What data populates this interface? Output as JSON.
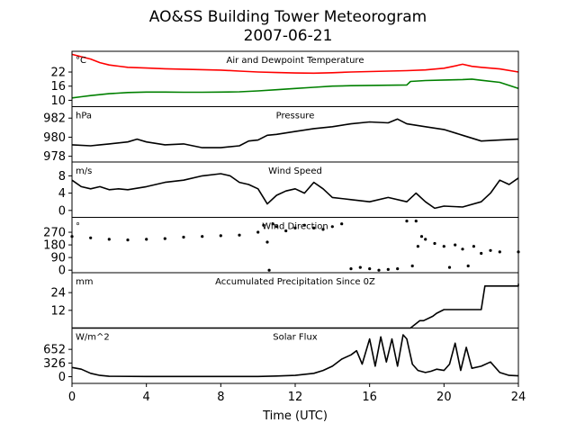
{
  "figure": {
    "title_line1": "AO&SS Building Tower Meteorogram",
    "title_line2": "2007-06-21",
    "xlabel": "Time (UTC)"
  },
  "chart_data": [
    {
      "type": "line",
      "title": "Air and Dewpoint Temperature",
      "unit": "°C",
      "ylim": [
        7.3,
        30.8
      ],
      "yticks": [
        "10",
        "16",
        "22"
      ],
      "ytick_values": [
        10,
        16,
        22
      ],
      "xlim": [
        0,
        24
      ],
      "series": [
        {
          "color": "#ff0000",
          "x": [
            0,
            0.5,
            1,
            1.5,
            2,
            2.5,
            3,
            4,
            5,
            6,
            7,
            8,
            9,
            10,
            11,
            12,
            13,
            14,
            15,
            16,
            17,
            18,
            19,
            20,
            20.5,
            21,
            21.5,
            22,
            23,
            24
          ],
          "y": [
            29.5,
            28.5,
            27.5,
            26,
            25,
            24.5,
            24,
            23.7,
            23.4,
            23.2,
            23,
            22.8,
            22.4,
            22,
            21.8,
            21.6,
            21.5,
            21.7,
            22,
            22.2,
            22.4,
            22.6,
            22.9,
            23.6,
            24.4,
            25.3,
            24.4,
            24,
            23.3,
            22
          ]
        },
        {
          "color": "#008000",
          "x": [
            0,
            0.5,
            1,
            2,
            3,
            4,
            5,
            6,
            7,
            8,
            9,
            10,
            11,
            12,
            13,
            14,
            15,
            16,
            17,
            18,
            18.2,
            19,
            20,
            21,
            21.5,
            22,
            23,
            24
          ],
          "y": [
            11,
            11.5,
            12,
            12.8,
            13.3,
            13.5,
            13.5,
            13.4,
            13.4,
            13.5,
            13.6,
            14,
            14.5,
            15,
            15.5,
            16,
            16.2,
            16.3,
            16.4,
            16.5,
            18,
            18.4,
            18.6,
            18.8,
            19,
            18.5,
            17.6,
            15
          ]
        }
      ]
    },
    {
      "type": "line",
      "title": "Pressure",
      "unit": "hPa",
      "ylim": [
        977.4,
        983.2
      ],
      "yticks": [
        "978",
        "980",
        "982"
      ],
      "ytick_values": [
        978,
        980,
        982
      ],
      "xlim": [
        0,
        24
      ],
      "series": [
        {
          "color": "#000000",
          "x": [
            0,
            1,
            1.5,
            2,
            3,
            3.5,
            4,
            5,
            6,
            7,
            8,
            9,
            9.5,
            10,
            10.5,
            11,
            12,
            13,
            14,
            15,
            16,
            17,
            17.5,
            18,
            19,
            20,
            21,
            22,
            23,
            24
          ],
          "y": [
            979.2,
            979.1,
            979.2,
            979.3,
            979.5,
            979.8,
            979.5,
            979.2,
            979.3,
            978.9,
            978.9,
            979.1,
            979.6,
            979.7,
            980.2,
            980.3,
            980.6,
            980.9,
            981.1,
            981.4,
            981.6,
            981.5,
            981.9,
            981.4,
            981.1,
            980.8,
            980.2,
            979.6,
            979.7,
            979.8
          ]
        }
      ]
    },
    {
      "type": "line",
      "title": "Wind Speed",
      "unit": "m/s",
      "ylim": [
        -1.6,
        11.2
      ],
      "yticks": [
        "0",
        "4",
        "8"
      ],
      "ytick_values": [
        0,
        4,
        8
      ],
      "xlim": [
        0,
        24
      ],
      "series": [
        {
          "color": "#000000",
          "x": [
            0,
            0.5,
            1,
            1.5,
            2,
            2.5,
            3,
            4,
            5,
            6,
            7,
            8,
            8.5,
            9,
            9.5,
            10,
            10.5,
            11,
            11.5,
            12,
            12.5,
            13,
            13.5,
            14,
            15,
            16,
            17,
            18,
            18.5,
            19,
            19.5,
            20,
            21,
            22,
            22.5,
            23,
            23.5,
            24
          ],
          "y": [
            7,
            5.5,
            5,
            5.5,
            4.8,
            5,
            4.8,
            5.5,
            6.5,
            7,
            8,
            8.5,
            8,
            6.5,
            6,
            5,
            1.5,
            3.5,
            4.5,
            5,
            4,
            6.5,
            5,
            3,
            2.5,
            2,
            3,
            2,
            4,
            2,
            0.5,
            1,
            0.8,
            2,
            4,
            7,
            6,
            7.5
          ]
        }
      ]
    },
    {
      "type": "scatter",
      "title": "Wind Direction",
      "unit": "°",
      "ylim": [
        -18,
        376
      ],
      "yticks": [
        "0",
        "90",
        "180",
        "270"
      ],
      "ytick_values": [
        0,
        90,
        180,
        270
      ],
      "xlim": [
        0,
        24
      ],
      "series": [
        {
          "color": "#000000",
          "x": [
            0,
            1,
            2,
            3,
            4,
            5,
            6,
            7,
            8,
            9,
            10,
            10.3,
            10.5,
            10.6,
            10.8,
            11,
            11.5,
            12,
            12.5,
            13,
            13.5,
            14,
            14.5,
            15,
            15.5,
            16,
            16.5,
            17,
            17.5,
            18,
            18.3,
            18.5,
            18.6,
            18.8,
            19,
            19.5,
            20,
            20.3,
            20.6,
            21,
            21.3,
            21.6,
            22,
            22.5,
            23,
            24
          ],
          "y": [
            240,
            230,
            220,
            215,
            220,
            225,
            235,
            240,
            245,
            250,
            270,
            320,
            200,
            0,
            330,
            310,
            280,
            300,
            320,
            300,
            290,
            310,
            330,
            10,
            20,
            10,
            0,
            5,
            10,
            350,
            30,
            350,
            170,
            240,
            220,
            190,
            170,
            20,
            180,
            150,
            30,
            170,
            120,
            140,
            130,
            130
          ]
        }
      ]
    },
    {
      "type": "line",
      "title": "Accumulated Precipitation Since 0Z",
      "unit": "mm",
      "ylim": [
        0,
        37.5
      ],
      "yticks": [
        "12",
        "24"
      ],
      "ytick_values": [
        12,
        24
      ],
      "xlim": [
        0,
        24
      ],
      "series": [
        {
          "color": "#000000",
          "x": [
            0,
            18.2,
            18.7,
            18.9,
            19.4,
            19.6,
            20.0,
            22.0,
            22.2,
            24.0,
            24.0
          ],
          "y": [
            0,
            0,
            5,
            5,
            8,
            10,
            12.5,
            12.5,
            28.5,
            28.5,
            30
          ]
        }
      ]
    },
    {
      "type": "line",
      "title": "Solar Flux",
      "unit": "W/m^2",
      "ylim": [
        -160,
        1160
      ],
      "yticks": [
        "0",
        "326",
        "652"
      ],
      "ytick_values": [
        0,
        326,
        652
      ],
      "xlim": [
        0,
        24
      ],
      "series": [
        {
          "color": "#000000",
          "x": [
            0,
            0.5,
            1,
            1.5,
            2,
            4,
            6,
            8,
            10,
            11,
            12,
            13,
            13.5,
            14,
            14.5,
            15,
            15.3,
            15.6,
            16,
            16.3,
            16.6,
            16.9,
            17.2,
            17.5,
            17.8,
            18,
            18.3,
            18.6,
            19,
            19.3,
            19.6,
            20,
            20.3,
            20.6,
            20.9,
            21.2,
            21.5,
            22,
            22.5,
            23,
            23.5,
            24
          ],
          "y": [
            220,
            180,
            80,
            30,
            10,
            5,
            5,
            5,
            5,
            15,
            30,
            80,
            150,
            250,
            420,
            520,
            620,
            300,
            900,
            250,
            950,
            350,
            900,
            250,
            1000,
            900,
            300,
            150,
            100,
            130,
            180,
            150,
            300,
            800,
            150,
            700,
            200,
            250,
            350,
            100,
            30,
            20
          ]
        }
      ]
    }
  ]
}
